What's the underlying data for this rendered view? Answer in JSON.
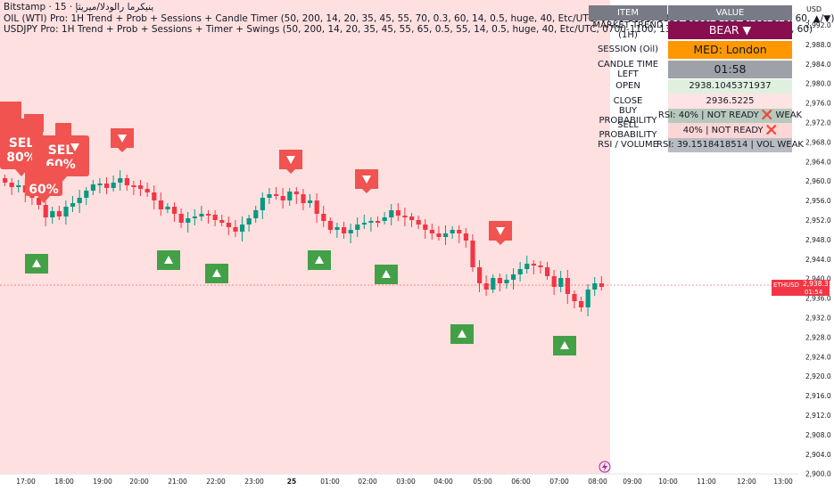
{
  "header": {
    "symbol_line": "Bitstamp · 15 · ينيكرما رالودلا/ميريثإ",
    "line2": "OIL (WTI) Pro: 1H Trend + Prob + Sessions + Candle Timer (50, 200, 14, 20, 35, 45, 55, 70, 0.3, 60, 14, 0.5, huge, 40, Etc/UTC, 0700-1000, 1330-1600, 1400-1700, 3, 3, 60, ▲/▼)",
    "line3": "USDJPY Pro: 1H Trend + Prob + Sessions + Timer + Swings (50, 200, 14, 20, 35, 45, 55, 65, 0.5, 55, 14, 0.5, huge, 40, Etc/UTC, 0700-1100, 1330-1630, 1400-1700, 3, 3, 60)"
  },
  "panel": {
    "header_item": "ITEM",
    "header_value": "VALUE",
    "rows": [
      {
        "label": "MARKET TREND (1H)",
        "value": "BEAR ▼",
        "bg": "#880e4f",
        "color": "#ffffff"
      },
      {
        "label": "SESSION (Oil)",
        "value": "MED: London",
        "bg": "#ff9800",
        "color": "#131722"
      },
      {
        "label": "CANDLE TIME LEFT",
        "value": "01:58",
        "bg": "#9ea1a8",
        "color": "#131722"
      },
      {
        "label": "OPEN",
        "value": "2938.1045371937",
        "bg": "#dff0df",
        "color": "#131722"
      },
      {
        "label": "CLOSE",
        "value": "2936.5225",
        "bg": "#fde3e3",
        "color": "#131722"
      },
      {
        "label": "BUY PROBABILITY",
        "value": "RSI: 40% | NOT READY ❌ WEAK",
        "bg": "#b7c9bc",
        "color": "#131722"
      },
      {
        "label": "SELL PROBABILITY",
        "value": "40% | NOT READY ❌",
        "bg": "#fbd6d6",
        "color": "#131722"
      },
      {
        "label": "RSI / VOLUME",
        "value": "RSI: 39.1518418514 | VOL WEAK",
        "bg": "#b9bbc0",
        "color": "#131722"
      }
    ]
  },
  "price_axis": {
    "currency": "USD",
    "ticks": [
      "2,992.0",
      "2,988.0",
      "2,984.0",
      "2,980.0",
      "2,976.0",
      "2,972.0",
      "2,968.0",
      "2,964.0",
      "2,960.0",
      "2,956.0",
      "2,952.0",
      "2,948.0",
      "2,944.0",
      "2,940.0",
      "2,936.0",
      "2,932.0",
      "2,928.0",
      "2,924.0",
      "2,920.0",
      "2,916.0",
      "2,912.0",
      "2,908.0",
      "2,904.0",
      "2,900.0"
    ],
    "current_symbol": "ETHUSD",
    "current_price": "2,938.3",
    "countdown": "01:54"
  },
  "time_axis": {
    "ticks": [
      "17:00",
      "18:00",
      "19:00",
      "20:00",
      "21:00",
      "22:00",
      "23:00",
      "25",
      "01:00",
      "02:00",
      "03:00",
      "04:00",
      "05:00",
      "06:00",
      "07:00",
      "08:00",
      "09:00",
      "10:00",
      "11:00",
      "12:00",
      "13:00"
    ]
  },
  "signals": {
    "sell_big_1": "SEL",
    "sell_big_1_pct": "80%",
    "sell_big_2": "SEL",
    "sell_big_2_pct": "60%",
    "sell_big_3_pct": "60%"
  },
  "colors": {
    "bg_pink": "#ffe0e0",
    "up": "#089981",
    "down": "#f23645",
    "buy_marker": "#43a047",
    "sell_marker": "#f05350"
  }
}
